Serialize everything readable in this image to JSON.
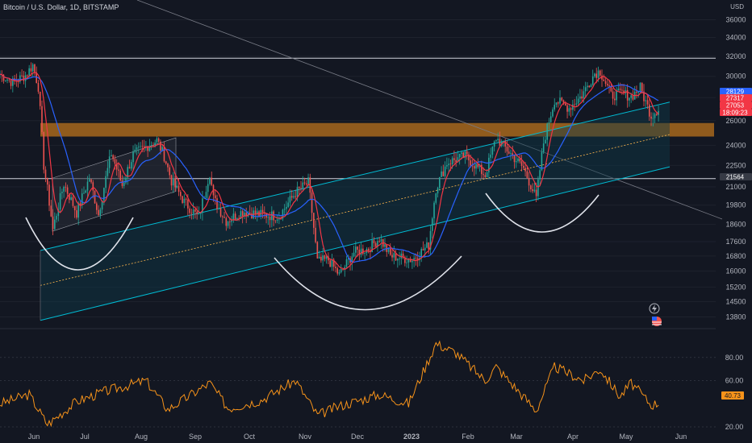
{
  "header": {
    "title": "Bitcoin / U.S. Dollar, 1D, BITSTAMP",
    "currency": "USD"
  },
  "price_axis": {
    "ticks": [
      "36000",
      "34000",
      "32000",
      "30000",
      "28000",
      "26000",
      "24000",
      "22500",
      "21000",
      "19800",
      "18600",
      "17600",
      "16800",
      "16000",
      "15200",
      "14500",
      "13800"
    ],
    "tags": [
      {
        "text": "28129",
        "color": "#2962ff"
      },
      {
        "text": "27317",
        "color": "#f23645"
      },
      {
        "text": "27053",
        "color": "#f23645"
      },
      {
        "text": "18:09:23",
        "color": "#f23645"
      },
      {
        "text": "21564",
        "color": "#363a45"
      }
    ]
  },
  "rsi_axis": {
    "ticks": [
      "80.00",
      "60.00",
      "20.00"
    ],
    "value_tag": "40.73",
    "tag_color": "#f7931a"
  },
  "time_axis": {
    "labels": [
      "Jun",
      "Jul",
      "Aug",
      "Sep",
      "Oct",
      "Nov",
      "Dec",
      "2023",
      "Feb",
      "Mar",
      "Apr",
      "May",
      "Jun"
    ]
  },
  "colors": {
    "up": "#26a69a",
    "down": "#ef5350",
    "ma_fast": "#f23645",
    "ma_slow": "#2962ff",
    "zone": "#f7931a",
    "channel": "#00bcd4",
    "rsi": "#f7931a"
  },
  "icons": [
    "lightning-icon",
    "us-flag-icon"
  ],
  "chart_data": {
    "type": "candlestick",
    "title": "Bitcoin / U.S. Dollar, 1D, BITSTAMP",
    "ylabel": "USD",
    "ylim": [
      13500,
      37000
    ],
    "y_scale": "log",
    "x_labels": [
      "Jun",
      "Jul",
      "Aug",
      "Sep",
      "Oct",
      "Nov",
      "Dec",
      "2023",
      "Feb",
      "Mar",
      "Apr",
      "May",
      "Jun"
    ],
    "price_path": [
      [
        "2022-05-20",
        30200
      ],
      [
        "2022-05-27",
        29400
      ],
      [
        "2022-06-03",
        30100
      ],
      [
        "2022-06-07",
        31100
      ],
      [
        "2022-06-10",
        29000
      ],
      [
        "2022-06-13",
        22500
      ],
      [
        "2022-06-18",
        18300
      ],
      [
        "2022-06-24",
        21200
      ],
      [
        "2022-07-01",
        19300
      ],
      [
        "2022-07-08",
        21600
      ],
      [
        "2022-07-13",
        19200
      ],
      [
        "2022-07-20",
        23400
      ],
      [
        "2022-07-26",
        21100
      ],
      [
        "2022-08-01",
        23300
      ],
      [
        "2022-08-08",
        23900
      ],
      [
        "2022-08-14",
        24400
      ],
      [
        "2022-08-18",
        23200
      ],
      [
        "2022-08-22",
        21400
      ],
      [
        "2022-08-29",
        20000
      ],
      [
        "2022-09-06",
        19000
      ],
      [
        "2022-09-12",
        22000
      ],
      [
        "2022-09-14",
        20200
      ],
      [
        "2022-09-21",
        18800
      ],
      [
        "2022-09-30",
        19400
      ],
      [
        "2022-10-10",
        19200
      ],
      [
        "2022-10-20",
        19100
      ],
      [
        "2022-10-29",
        20600
      ],
      [
        "2022-11-05",
        21300
      ],
      [
        "2022-11-08",
        18400
      ],
      [
        "2022-11-10",
        16500
      ],
      [
        "2022-11-16",
        16600
      ],
      [
        "2022-11-22",
        15800
      ],
      [
        "2022-11-30",
        17000
      ],
      [
        "2022-12-08",
        17200
      ],
      [
        "2022-12-14",
        17800
      ],
      [
        "2022-12-20",
        16800
      ],
      [
        "2023-01-01",
        16600
      ],
      [
        "2023-01-10",
        17400
      ],
      [
        "2023-01-14",
        20900
      ],
      [
        "2023-01-20",
        22700
      ],
      [
        "2023-01-30",
        23200
      ],
      [
        "2023-02-10",
        21800
      ],
      [
        "2023-02-16",
        24600
      ],
      [
        "2023-02-25",
        23200
      ],
      [
        "2023-03-03",
        22300
      ],
      [
        "2023-03-10",
        20200
      ],
      [
        "2023-03-14",
        24200
      ],
      [
        "2023-03-20",
        27800
      ],
      [
        "2023-03-28",
        27100
      ],
      [
        "2023-04-04",
        28200
      ],
      [
        "2023-04-11",
        30300
      ],
      [
        "2023-04-14",
        30500
      ],
      [
        "2023-04-20",
        28200
      ],
      [
        "2023-04-26",
        28400
      ],
      [
        "2023-05-01",
        28100
      ],
      [
        "2023-05-06",
        28900
      ],
      [
        "2023-05-09",
        27600
      ],
      [
        "2023-05-12",
        26400
      ],
      [
        "2023-05-16",
        27050
      ]
    ],
    "ma_fast": "short moving average (red)",
    "ma_slow": "long moving average (blue)",
    "horizontal_levels": [
      31800,
      21564
    ],
    "supply_zone": [
      24700,
      25800
    ],
    "last_price": 27053,
    "rsi": {
      "ylim": [
        20,
        100
      ],
      "ticks": [
        20,
        60,
        80
      ],
      "last": 40.73,
      "path": [
        [
          "2022-05-20",
          40
        ],
        [
          "2022-06-05",
          48
        ],
        [
          "2022-06-15",
          22
        ],
        [
          "2022-07-01",
          42
        ],
        [
          "2022-07-15",
          50
        ],
        [
          "2022-08-08",
          60
        ],
        [
          "2022-08-20",
          35
        ],
        [
          "2022-09-12",
          58
        ],
        [
          "2022-09-22",
          36
        ],
        [
          "2022-10-10",
          43
        ],
        [
          "2022-10-29",
          60
        ],
        [
          "2022-11-10",
          30
        ],
        [
          "2022-11-22",
          38
        ],
        [
          "2022-12-14",
          48
        ],
        [
          "2022-12-30",
          40
        ],
        [
          "2023-01-14",
          92
        ],
        [
          "2023-01-25",
          84
        ],
        [
          "2023-02-10",
          60
        ],
        [
          "2023-02-16",
          72
        ],
        [
          "2023-03-10",
          34
        ],
        [
          "2023-03-20",
          72
        ],
        [
          "2023-04-05",
          60
        ],
        [
          "2023-04-14",
          70
        ],
        [
          "2023-04-25",
          46
        ],
        [
          "2023-05-01",
          58
        ],
        [
          "2023-05-12",
          39
        ],
        [
          "2023-05-16",
          40.73
        ]
      ]
    }
  }
}
